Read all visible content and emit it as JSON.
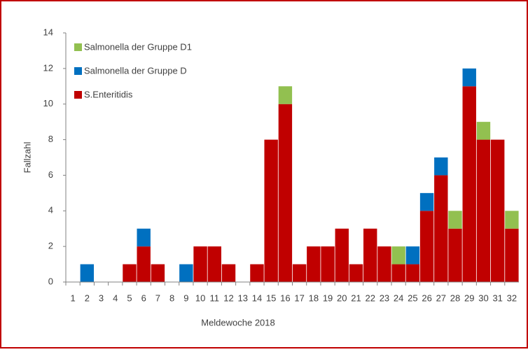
{
  "chart_data": {
    "type": "stacked_bar",
    "xlabel": "Meldewoche 2018",
    "ylabel": "Fallzahl",
    "categories": [
      "1",
      "2",
      "3",
      "4",
      "5",
      "6",
      "7",
      "8",
      "9",
      "10",
      "11",
      "12",
      "13",
      "14",
      "15",
      "16",
      "17",
      "18",
      "19",
      "20",
      "21",
      "22",
      "23",
      "24",
      "25",
      "26",
      "27",
      "28",
      "29",
      "30",
      "31",
      "32"
    ],
    "series": [
      {
        "name": "S.Enteritidis",
        "color": "#c00000",
        "values": [
          0,
          0,
          0,
          0,
          1,
          2,
          1,
          0,
          0,
          2,
          2,
          1,
          0,
          1,
          8,
          10,
          1,
          2,
          2,
          3,
          1,
          3,
          2,
          1,
          1,
          4,
          6,
          3,
          11,
          8,
          8,
          3
        ]
      },
      {
        "name": "Salmonella der Gruppe D",
        "color": "#0070c0",
        "values": [
          0,
          1,
          0,
          0,
          0,
          1,
          0,
          0,
          1,
          0,
          0,
          0,
          0,
          0,
          0,
          0,
          0,
          0,
          0,
          0,
          0,
          0,
          0,
          0,
          1,
          1,
          1,
          0,
          1,
          0,
          0,
          0
        ]
      },
      {
        "name": "Salmonella der Gruppe D1",
        "color": "#92c050",
        "values": [
          0,
          0,
          0,
          0,
          0,
          0,
          0,
          0,
          0,
          0,
          0,
          0,
          0,
          0,
          0,
          1,
          0,
          0,
          0,
          0,
          0,
          0,
          0,
          1,
          0,
          0,
          0,
          1,
          0,
          1,
          0,
          1
        ]
      }
    ],
    "ylim": [
      0,
      14
    ],
    "yticks": [
      0,
      2,
      4,
      6,
      8,
      10,
      12,
      14
    ],
    "legend": "upper left"
  }
}
